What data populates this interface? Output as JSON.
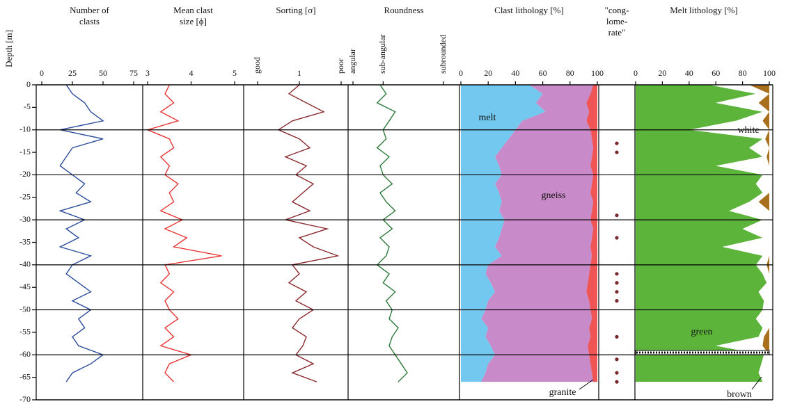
{
  "chart_data": {
    "type": "well-log",
    "ylabel": "Depth [m]",
    "ylim": [
      -70,
      0
    ],
    "yticks": [
      0,
      -5,
      -10,
      -15,
      -20,
      -25,
      -30,
      -35,
      -40,
      -45,
      -50,
      -55,
      -60,
      -65,
      -70
    ],
    "grid": true,
    "depth": [
      0,
      -2,
      -4,
      -6,
      -8,
      -10,
      -12,
      -14,
      -16,
      -18,
      -20,
      -22,
      -24,
      -26,
      -28,
      -30,
      -32,
      -34,
      -36,
      -38,
      -40,
      -42,
      -44,
      -46,
      -48,
      -50,
      -52,
      -54,
      -56,
      -58,
      -60,
      -62,
      -64,
      -66
    ],
    "panels": [
      {
        "type": "line",
        "title": [
          "Number of",
          "clasts"
        ],
        "xlim": [
          0,
          75
        ],
        "xticks": [
          0,
          25,
          50,
          75
        ],
        "color": "#2b4c9b",
        "values": [
          20,
          25,
          35,
          40,
          50,
          15,
          50,
          25,
          20,
          15,
          25,
          35,
          28,
          40,
          15,
          35,
          20,
          30,
          15,
          40,
          25,
          20,
          30,
          40,
          25,
          40,
          30,
          35,
          25,
          30,
          50,
          40,
          25,
          20
        ]
      },
      {
        "type": "line",
        "title": [
          "Mean clast",
          "size [ϕ]"
        ],
        "xlim": [
          3,
          5
        ],
        "xticks": [
          3,
          4,
          5
        ],
        "color": "#e83434",
        "values": [
          3.5,
          3.4,
          3.6,
          3.3,
          3.7,
          3.0,
          3.5,
          3.6,
          3.3,
          3.5,
          3.4,
          3.7,
          3.5,
          3.6,
          3.3,
          3.8,
          3.4,
          3.9,
          3.6,
          4.7,
          3.4,
          3.5,
          3.3,
          3.6,
          3.4,
          3.5,
          3.7,
          3.4,
          3.6,
          3.3,
          4.0,
          3.5,
          3.4,
          3.6
        ]
      },
      {
        "type": "line",
        "title": [
          "Sorting [σ]"
        ],
        "xlim": [
          0.4,
          1.6
        ],
        "xticks": [
          {
            "value": 0.4,
            "label": "good"
          },
          1,
          {
            "value": 1.6,
            "label": "poor"
          }
        ],
        "color": "#8a2a2e",
        "values": [
          1.0,
          0.85,
          1.1,
          1.35,
          0.9,
          0.7,
          1.0,
          1.15,
          0.8,
          1.1,
          0.95,
          1.2,
          1.05,
          0.9,
          1.15,
          0.8,
          1.4,
          1.0,
          1.2,
          1.55,
          0.9,
          1.0,
          0.85,
          1.1,
          0.95,
          1.2,
          1.0,
          0.9,
          1.1,
          1.05,
          0.95,
          1.2,
          0.9,
          1.25
        ]
      },
      {
        "type": "line",
        "title": [
          "Roundness"
        ],
        "xlim": [
          1,
          4
        ],
        "xticks": [
          {
            "value": 1,
            "label": "angular"
          },
          {
            "value": 2,
            "label": "sub-angular"
          },
          {
            "value": 4,
            "label": "subrounded"
          }
        ],
        "color": "#2e7a3c",
        "values": [
          1.9,
          2.1,
          1.8,
          2.4,
          2.2,
          2.0,
          2.1,
          1.8,
          2.2,
          1.9,
          2.0,
          2.3,
          1.9,
          2.1,
          2.4,
          2.0,
          2.3,
          1.9,
          2.2,
          2.1,
          1.8,
          2.2,
          2.0,
          2.4,
          2.1,
          2.3,
          2.2,
          2.5,
          2.3,
          2.2,
          2.4,
          2.6,
          2.8,
          2.5
        ]
      },
      {
        "type": "area",
        "title": [
          "Clast lithology [%]"
        ],
        "xlim": [
          0,
          100
        ],
        "xticks": [
          0,
          20,
          40,
          60,
          80,
          100
        ],
        "series": [
          {
            "name": "melt",
            "color": "#72c8ee",
            "values": [
              50,
              60,
              55,
              62,
              45,
              40,
              35,
              30,
              25,
              28,
              30,
              25,
              28,
              30,
              28,
              32,
              30,
              28,
              25,
              30,
              20,
              18,
              22,
              25,
              20,
              18,
              15,
              20,
              18,
              22,
              25,
              20,
              18,
              15
            ]
          },
          {
            "name": "gneiss",
            "color": "#c88ac8",
            "values": [
              47,
              35,
              37,
              32,
              47,
              55,
              61,
              67,
              71,
              67,
              67,
              71,
              67,
              67,
              68,
              63,
              67,
              68,
              70,
              66,
              75,
              76,
              71,
              67,
              74,
              77,
              81,
              74,
              77,
              71,
              69,
              75,
              78,
              82
            ]
          },
          {
            "name": "granite",
            "color": "#ef5555",
            "values": [
              3,
              5,
              8,
              6,
              8,
              5,
              4,
              3,
              4,
              5,
              3,
              4,
              5,
              3,
              4,
              5,
              3,
              4,
              5,
              4,
              5,
              6,
              7,
              8,
              6,
              5,
              4,
              6,
              5,
              7,
              6,
              5,
              4,
              3
            ]
          }
        ]
      },
      {
        "type": "scatter",
        "title": [
          "\"cong-",
          "lome-",
          "rate\""
        ],
        "color": "#7a2a2a",
        "y": [
          -13,
          -15,
          -29,
          -34,
          -42,
          -44,
          -46,
          -48,
          -56,
          -61,
          -64,
          -66
        ]
      },
      {
        "type": "area",
        "title": [
          "Melt lithology [%]"
        ],
        "xlim": [
          0,
          100
        ],
        "xticks": [
          0,
          20,
          40,
          60,
          80,
          100
        ],
        "series": [
          {
            "name": "green",
            "color": "#5cb43a",
            "values": [
              55,
              90,
              60,
              95,
              75,
              40,
              95,
              85,
              95,
              60,
              95,
              90,
              95,
              85,
              70,
              95,
              80,
              95,
              65,
              95,
              90,
              95,
              98,
              92,
              96,
              95,
              90,
              95,
              92,
              60,
              96,
              94,
              92,
              95
            ]
          },
          {
            "name": "white",
            "color": "#ffffff",
            "values": [
              30,
              10,
              32,
              5,
              20,
              60,
              2,
              15,
              3,
              40,
              5,
              10,
              5,
              7,
              30,
              5,
              20,
              5,
              35,
              5,
              8,
              5,
              2,
              8,
              4,
              5,
              10,
              5,
              4,
              35,
              4,
              6,
              8,
              5
            ]
          },
          {
            "name": "brown",
            "color": "#a86f1c",
            "values": [
              15,
              0,
              8,
              0,
              5,
              0,
              3,
              0,
              2,
              0,
              0,
              0,
              0,
              8,
              0,
              0,
              0,
              0,
              0,
              0,
              2,
              0,
              0,
              0,
              0,
              0,
              0,
              0,
              4,
              5,
              0,
              0,
              0,
              0
            ]
          }
        ]
      }
    ]
  }
}
